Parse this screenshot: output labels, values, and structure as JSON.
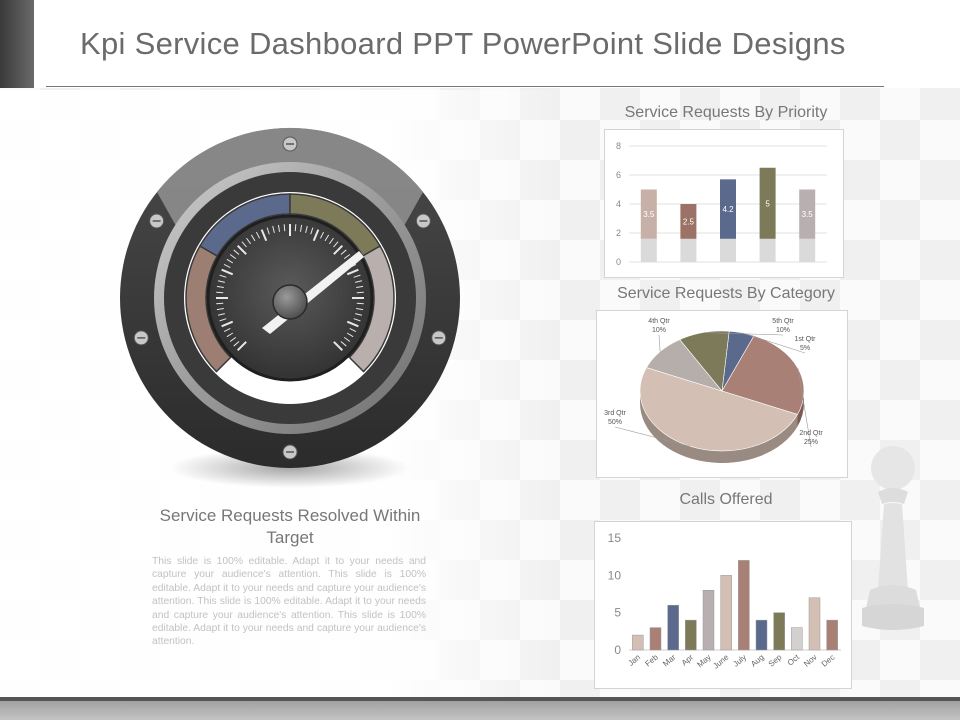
{
  "page": {
    "title": "Kpi Service Dashboard PPT PowerPoint Slide Designs"
  },
  "gauge": {
    "title": "Service Requests Resolved Within Target",
    "segments": [
      {
        "name": "brown",
        "color": "#9c7e72"
      },
      {
        "name": "blue",
        "color": "#5b6a8c"
      },
      {
        "name": "olive",
        "color": "#7c7a58"
      },
      {
        "name": "grey",
        "color": "#b9b0ae"
      }
    ]
  },
  "description": "This slide is 100% editable. Adapt it to your needs and capture your audience's attention. This slide is 100% editable. Adapt it to your needs and capture your audience's attention. This slide is 100% editable. Adapt it to your needs and capture your audience's attention. This slide is 100% editable. Adapt it to your needs and capture your audience's attention.",
  "chart_data": [
    {
      "type": "bar",
      "title": "Service Requests By Priority",
      "ylim": [
        0,
        8
      ],
      "yticks": [
        0,
        2,
        4,
        6,
        8
      ],
      "grid": true,
      "values": [
        5,
        4,
        5.7,
        6.5,
        5
      ],
      "data_labels": [
        "3.5",
        "2.5",
        "4.2",
        "5",
        "3.5"
      ],
      "colors": [
        "#c7b0a8",
        "#9c7266",
        "#5b6a8c",
        "#7c7a58",
        "#b8b0b0"
      ],
      "base_color": "#dadada"
    },
    {
      "type": "pie",
      "title": "Service Requests By Category",
      "slices": [
        {
          "label": "1st Qtr",
          "pct_label": "5%",
          "value": 5,
          "color": "#5b6a8c"
        },
        {
          "label": "2nd Qtr",
          "pct_label": "25%",
          "value": 25,
          "color": "#a98075"
        },
        {
          "label": "3rd Qtr",
          "pct_label": "50%",
          "value": 50,
          "color": "#d4bfb4"
        },
        {
          "label": "4th Qtr",
          "pct_label": "10%",
          "value": 10,
          "color": "#b5aeab"
        },
        {
          "label": "5th Qtr",
          "pct_label": "10%",
          "value": 10,
          "color": "#7c7a58"
        }
      ]
    },
    {
      "type": "bar",
      "title": "Calls Offered",
      "categories": [
        "Jan",
        "Feb",
        "Mar",
        "Apr",
        "May",
        "June",
        "July",
        "Aug",
        "Sep",
        "Oct",
        "Nov",
        "Dec"
      ],
      "values": [
        2,
        3,
        6,
        4,
        8,
        10,
        12,
        4,
        5,
        3,
        7,
        4
      ],
      "colors": [
        "#d4bfb4",
        "#a98075",
        "#5b6a8c",
        "#7c7a58",
        "#b8b0b0",
        "#d4bfb4",
        "#a98075",
        "#5b6a8c",
        "#7c7a58",
        "#d4d0d0",
        "#d4bfb4",
        "#a98075"
      ],
      "ylim": [
        0,
        15
      ],
      "yticks": [
        0,
        5,
        10,
        15
      ],
      "grid": false
    }
  ]
}
